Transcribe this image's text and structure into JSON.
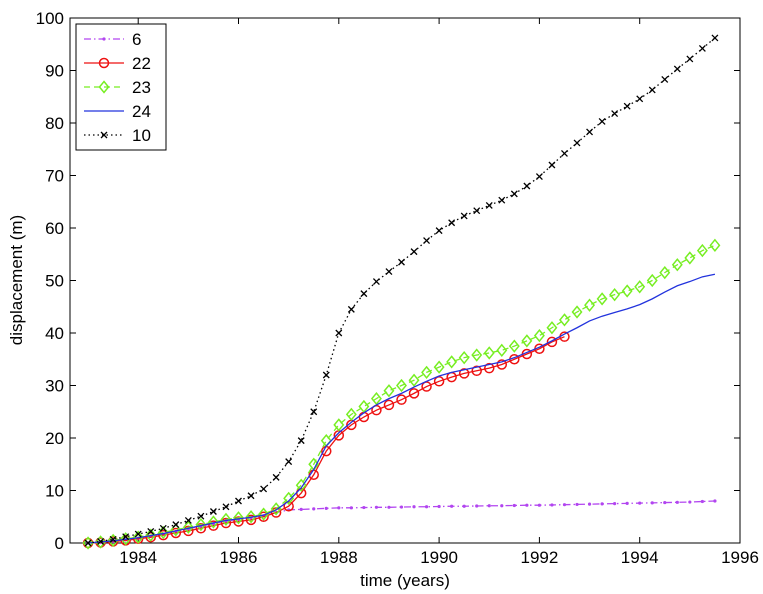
{
  "chart_data": {
    "type": "line",
    "xlabel": "time (years)",
    "ylabel": "displacement (m)",
    "xlim": [
      1982.64,
      1996
    ],
    "xticks": [
      1984,
      1986,
      1988,
      1990,
      1992,
      1994,
      1996
    ],
    "ylim": [
      0,
      100
    ],
    "yticks": [
      0,
      10,
      20,
      30,
      40,
      50,
      60,
      70,
      80,
      90,
      100
    ],
    "grid": false,
    "legend_position": "upper-left",
    "series": [
      {
        "name": "6",
        "color": "#b245f0",
        "dash": "dashdot",
        "marker": "point",
        "x": [
          1983,
          1983.25,
          1983.5,
          1983.75,
          1984,
          1984.25,
          1984.5,
          1984.75,
          1985,
          1985.25,
          1985.5,
          1985.75,
          1986,
          1986.25,
          1986.5,
          1986.75,
          1987,
          1987.25,
          1987.5,
          1987.75,
          1988,
          1988.25,
          1988.5,
          1988.75,
          1989,
          1989.25,
          1989.5,
          1989.75,
          1990,
          1990.25,
          1990.5,
          1990.75,
          1991,
          1991.25,
          1991.5,
          1991.75,
          1992,
          1992.25,
          1992.5,
          1992.75,
          1993,
          1993.25,
          1993.5,
          1993.75,
          1994,
          1994.25,
          1994.5,
          1994.75,
          1995,
          1995.25,
          1995.5
        ],
        "values": [
          0,
          0.1,
          0.3,
          0.6,
          0.9,
          1.3,
          1.7,
          2.2,
          2.7,
          3.2,
          3.7,
          4.2,
          4.5,
          4.8,
          5.2,
          5.8,
          6.3,
          6.4,
          6.5,
          6.6,
          6.7,
          6.7,
          6.75,
          6.8,
          6.8,
          6.85,
          6.9,
          6.9,
          6.95,
          7,
          7,
          7.05,
          7.1,
          7.1,
          7.15,
          7.2,
          7.2,
          7.25,
          7.3,
          7.35,
          7.4,
          7.45,
          7.5,
          7.55,
          7.6,
          7.65,
          7.7,
          7.75,
          7.8,
          7.9,
          8.0
        ]
      },
      {
        "name": "22",
        "color": "#ee1111",
        "dash": "solid",
        "marker": "circle",
        "x": [
          1983,
          1983.25,
          1983.5,
          1983.75,
          1984,
          1984.25,
          1984.5,
          1984.75,
          1985,
          1985.25,
          1985.5,
          1985.75,
          1986,
          1986.25,
          1986.5,
          1986.75,
          1987,
          1987.25,
          1987.5,
          1987.75,
          1988,
          1988.25,
          1988.5,
          1988.75,
          1989,
          1989.25,
          1989.5,
          1989.75,
          1990,
          1990.25,
          1990.5,
          1990.75,
          1991,
          1991.25,
          1991.5,
          1991.75,
          1992,
          1992.25,
          1992.5
        ],
        "values": [
          0,
          0.1,
          0.3,
          0.5,
          0.8,
          1.1,
          1.5,
          1.9,
          2.3,
          2.8,
          3.3,
          3.8,
          4.1,
          4.4,
          5,
          5.8,
          7,
          9.5,
          13,
          17.5,
          20.5,
          22.5,
          24,
          25.3,
          26.3,
          27.3,
          28.5,
          29.8,
          30.8,
          31.6,
          32.3,
          32.8,
          33.3,
          34,
          35,
          36,
          37,
          38.3,
          39.3
        ]
      },
      {
        "name": "23",
        "color": "#77ee22",
        "dash": "dashed",
        "marker": "diamond",
        "x": [
          1983,
          1983.25,
          1983.5,
          1983.75,
          1984,
          1984.25,
          1984.5,
          1984.75,
          1985,
          1985.25,
          1985.5,
          1985.75,
          1986,
          1986.25,
          1986.5,
          1986.75,
          1987,
          1987.25,
          1987.5,
          1987.75,
          1988,
          1988.25,
          1988.5,
          1988.75,
          1989,
          1989.25,
          1989.5,
          1989.75,
          1990,
          1990.25,
          1990.5,
          1990.75,
          1991,
          1991.25,
          1991.5,
          1991.75,
          1992,
          1992.25,
          1992.5,
          1992.75,
          1993,
          1993.25,
          1993.5,
          1993.75,
          1994,
          1994.25,
          1994.5,
          1994.75,
          1995,
          1995.25,
          1995.5
        ],
        "values": [
          0,
          0.2,
          0.5,
          0.8,
          1.1,
          1.5,
          2.0,
          2.5,
          3.0,
          3.5,
          4.0,
          4.5,
          4.8,
          5.0,
          5.5,
          6.5,
          8.5,
          11,
          15,
          19.5,
          22.5,
          24.5,
          26,
          27.5,
          29,
          30,
          31,
          32.5,
          33.5,
          34.5,
          35.3,
          35.8,
          36.2,
          36.7,
          37.5,
          38.5,
          39.5,
          41,
          42.5,
          44,
          45.3,
          46.5,
          47.3,
          48,
          48.8,
          50,
          51.5,
          53,
          54.3,
          55.7,
          56.7
        ]
      },
      {
        "name": "24",
        "color": "#2233dd",
        "dash": "solid",
        "marker": "none",
        "x": [
          1983,
          1983.25,
          1983.5,
          1983.75,
          1984,
          1984.25,
          1984.5,
          1984.75,
          1985,
          1985.25,
          1985.5,
          1985.75,
          1986,
          1986.25,
          1986.5,
          1986.75,
          1987,
          1987.25,
          1987.5,
          1987.75,
          1988,
          1988.25,
          1988.5,
          1988.75,
          1989,
          1989.25,
          1989.5,
          1989.75,
          1990,
          1990.25,
          1990.5,
          1990.75,
          1991,
          1991.25,
          1991.5,
          1991.75,
          1992,
          1992.25,
          1992.5,
          1992.75,
          1993,
          1993.25,
          1993.5,
          1993.75,
          1994,
          1994.25,
          1994.5,
          1994.75,
          1995,
          1995.25,
          1995.5
        ],
        "values": [
          0,
          0.2,
          0.4,
          0.7,
          1.0,
          1.4,
          1.8,
          2.3,
          2.8,
          3.3,
          3.8,
          4.3,
          4.6,
          4.9,
          5.3,
          6.3,
          8,
          10.5,
          14,
          18.5,
          21,
          23,
          24.8,
          26.3,
          27.5,
          28.5,
          29.7,
          30.8,
          31.8,
          32.5,
          33,
          33.5,
          34,
          34.5,
          35.3,
          36.3,
          37.3,
          38.5,
          39.8,
          41,
          42.3,
          43.2,
          43.9,
          44.6,
          45.4,
          46.5,
          47.8,
          49,
          49.8,
          50.7,
          51.2
        ]
      },
      {
        "name": "10",
        "color": "#000000",
        "dash": "dotted",
        "marker": "x",
        "x": [
          1983,
          1983.25,
          1983.5,
          1983.75,
          1984,
          1984.25,
          1984.5,
          1984.75,
          1985,
          1985.25,
          1985.5,
          1985.75,
          1986,
          1986.25,
          1986.5,
          1986.75,
          1987,
          1987.25,
          1987.5,
          1987.75,
          1988,
          1988.25,
          1988.5,
          1988.75,
          1989,
          1989.25,
          1989.5,
          1989.75,
          1990,
          1990.25,
          1990.5,
          1990.75,
          1991,
          1991.25,
          1991.5,
          1991.75,
          1992,
          1992.25,
          1992.5,
          1992.75,
          1993,
          1993.25,
          1993.5,
          1993.75,
          1994,
          1994.25,
          1994.5,
          1994.75,
          1995,
          1995.25,
          1995.5
        ],
        "values": [
          0,
          0.3,
          0.7,
          1.2,
          1.7,
          2.2,
          2.8,
          3.5,
          4.3,
          5.1,
          6,
          6.9,
          8,
          9,
          10.3,
          12.5,
          15.5,
          19.5,
          25,
          32,
          40,
          44.5,
          47.5,
          49.8,
          51.7,
          53.5,
          55.5,
          57.6,
          59.5,
          61,
          62.3,
          63.3,
          64.3,
          65.3,
          66.5,
          68,
          69.8,
          72,
          74.2,
          76.2,
          78.3,
          80.3,
          81.8,
          83.2,
          84.6,
          86.3,
          88.3,
          90.3,
          92.2,
          94.2,
          96.2
        ]
      }
    ]
  }
}
